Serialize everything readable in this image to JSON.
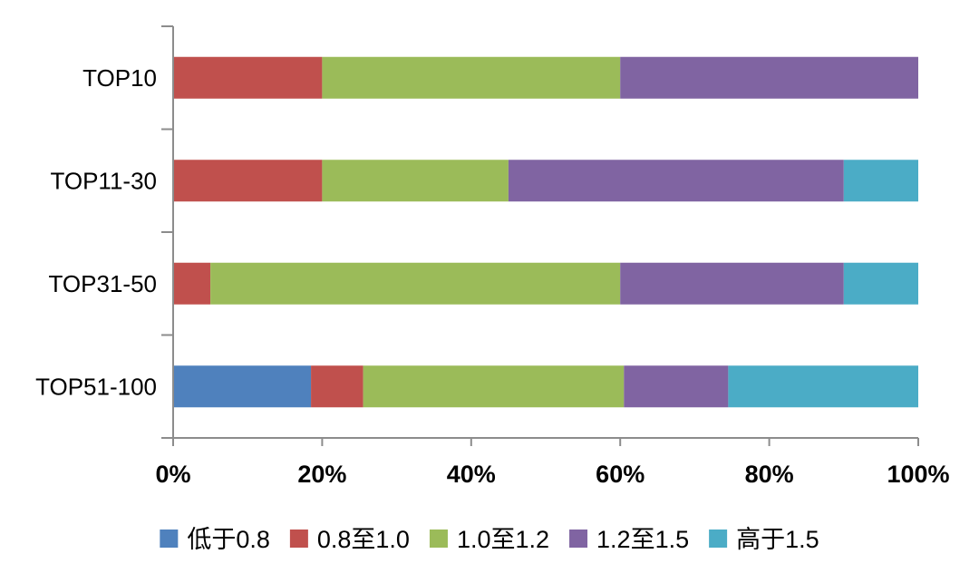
{
  "chart_data": {
    "type": "bar",
    "orientation": "horizontal",
    "stacking": "percent",
    "categories": [
      "TOP10",
      "TOP11-30",
      "TOP31-50",
      "TOP51-100"
    ],
    "series": [
      {
        "name": "低于0.8",
        "color": "#4f81bd",
        "values": [
          0,
          0,
          0,
          18.5
        ]
      },
      {
        "name": "0.8至1.0",
        "color": "#c0504d",
        "values": [
          20,
          20,
          5,
          7
        ]
      },
      {
        "name": "1.0至1.2",
        "color": "#9bbb59",
        "values": [
          40,
          25,
          55,
          35
        ]
      },
      {
        "name": "1.2至1.5",
        "color": "#8064a2",
        "values": [
          40,
          45,
          30,
          14
        ]
      },
      {
        "name": "高于1.5",
        "color": "#4bacc6",
        "values": [
          0,
          10,
          10,
          25.5
        ]
      }
    ],
    "x_ticks": [
      "0%",
      "20%",
      "40%",
      "60%",
      "80%",
      "100%"
    ],
    "xlim": [
      0,
      100
    ],
    "legend_position": "bottom",
    "grid": false
  }
}
